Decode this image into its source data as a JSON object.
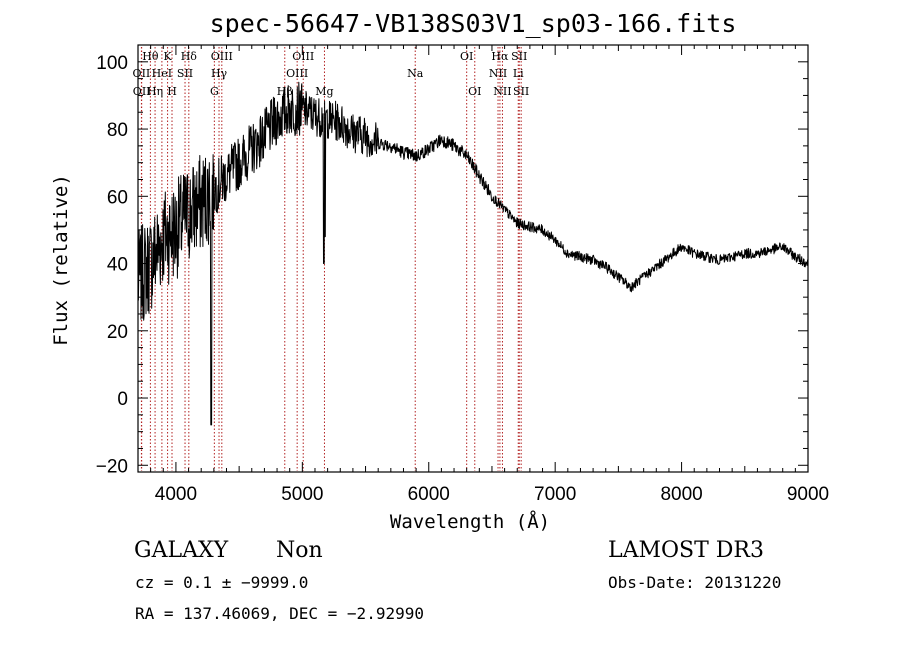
{
  "chart_data": {
    "type": "line",
    "title": "spec-56647-VB138S03V1_sp03-166.fits",
    "xlabel": "Wavelength (Å)",
    "ylabel": "Flux (relative)",
    "xlim": [
      3700,
      9000
    ],
    "ylim": [
      -22,
      105
    ],
    "x_ticks": [
      4000,
      5000,
      6000,
      7000,
      8000,
      9000
    ],
    "y_ticks": [
      -20,
      0,
      20,
      40,
      60,
      80,
      100
    ],
    "spectrum_anchors": {
      "wavelength": [
        3700,
        3800,
        3900,
        4000,
        4100,
        4200,
        4300,
        4400,
        4500,
        4600,
        4700,
        4800,
        4900,
        5000,
        5100,
        5200,
        5300,
        5400,
        5500,
        5600,
        5700,
        5800,
        5900,
        6000,
        6100,
        6200,
        6300,
        6400,
        6500,
        6600,
        6700,
        6800,
        6900,
        7000,
        7100,
        7200,
        7300,
        7400,
        7500,
        7600,
        7700,
        7800,
        7900,
        8000,
        8100,
        8200,
        8300,
        8400,
        8500,
        8600,
        8700,
        8800,
        8900,
        9000
      ],
      "flux": [
        35,
        40,
        48,
        50,
        55,
        58,
        62,
        66,
        70,
        74,
        78,
        83,
        86,
        86,
        84,
        83,
        82,
        79,
        78,
        76,
        75,
        73,
        72,
        74,
        77,
        75,
        72,
        66,
        60,
        56,
        52,
        51,
        50,
        47,
        43,
        42,
        41,
        39,
        36,
        33,
        36,
        39,
        42,
        45,
        43,
        42,
        41,
        42,
        43,
        43,
        44,
        45,
        42,
        40
      ]
    },
    "emission_lines": [
      {
        "label": "OII",
        "wavelength": 3727,
        "row": 2
      },
      {
        "label": "OII",
        "wavelength": 3729,
        "row": 3
      },
      {
        "label": "Hθ",
        "wavelength": 3798,
        "row": 1
      },
      {
        "label": "Hη",
        "wavelength": 3835,
        "row": 3
      },
      {
        "label": "HeI",
        "wavelength": 3889,
        "row": 2
      },
      {
        "label": "K",
        "wavelength": 3934,
        "row": 1
      },
      {
        "label": "H",
        "wavelength": 3969,
        "row": 3
      },
      {
        "label": "SII",
        "wavelength": 4072,
        "row": 2
      },
      {
        "label": "Hδ",
        "wavelength": 4102,
        "row": 1
      },
      {
        "label": "G",
        "wavelength": 4304,
        "row": 3
      },
      {
        "label": "Hγ",
        "wavelength": 4341,
        "row": 2
      },
      {
        "label": "OIII",
        "wavelength": 4363,
        "row": 1
      },
      {
        "label": "Hβ",
        "wavelength": 4861,
        "row": 3
      },
      {
        "label": "OIII",
        "wavelength": 4959,
        "row": 2
      },
      {
        "label": "OIII",
        "wavelength": 5007,
        "row": 1
      },
      {
        "label": "Mg",
        "wavelength": 5175,
        "row": 3
      },
      {
        "label": "Na",
        "wavelength": 5893,
        "row": 2
      },
      {
        "label": "OI",
        "wavelength": 6300,
        "row": 1
      },
      {
        "label": "OI",
        "wavelength": 6364,
        "row": 3
      },
      {
        "label": "NII",
        "wavelength": 6548,
        "row": 2
      },
      {
        "label": "Hα",
        "wavelength": 6563,
        "row": 1
      },
      {
        "label": "NII",
        "wavelength": 6583,
        "row": 3
      },
      {
        "label": "Li",
        "wavelength": 6708,
        "row": 2
      },
      {
        "label": "SII",
        "wavelength": 6716,
        "row": 1
      },
      {
        "label": "SII",
        "wavelength": 6731,
        "row": 3
      }
    ],
    "line_color": "#000000",
    "marker_color": "#b22222",
    "grid": false,
    "legend": "none"
  },
  "info": {
    "class": "GALAXY",
    "subclass": "Non",
    "survey": "LAMOST DR3",
    "cz": "cz = 0.1 ± −9999.0",
    "obs_date": "Obs-Date: 20131220",
    "radec": "RA = 137.46069, DEC =  −2.92990"
  }
}
